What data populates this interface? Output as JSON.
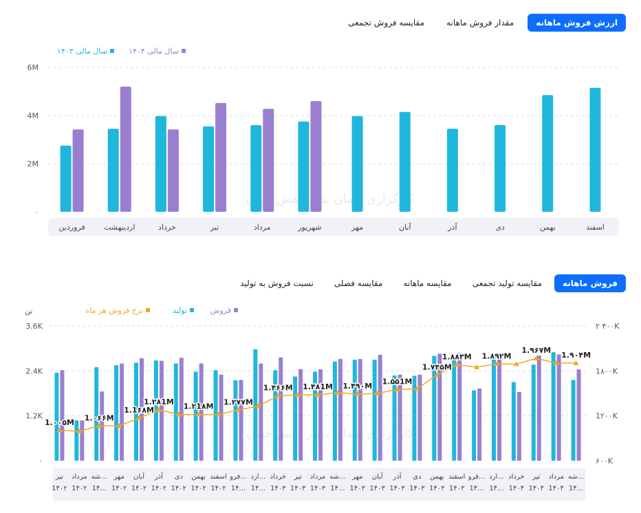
{
  "top_tabs": [
    {
      "label": "مقایسه فروش تجمعی",
      "active": false
    },
    {
      "label": "مقدار فروش ماهانه",
      "active": false
    },
    {
      "label": "ارزش فروش ماهانه",
      "active": true
    }
  ],
  "bottom_tabs": [
    {
      "label": "نسبت فروش به تولید",
      "active": false
    },
    {
      "label": "مقایسه فصلی",
      "active": false
    },
    {
      "label": "مقایسه ماهانه",
      "active": false
    },
    {
      "label": "مقایسه تولید تجمعی",
      "active": false
    },
    {
      "label": "فروش ماهانه",
      "active": true
    }
  ],
  "watermark_text": "کارگزاری آرمان تدبیر نقش جهان",
  "colors": {
    "teal": "#1fb7dc",
    "purple": "#9a7fd1",
    "orange": "#f5a623",
    "accent": "#0d6efd",
    "axis_band": "#f0f2f8"
  },
  "chart_data": [
    {
      "type": "bar",
      "ytick_labels": [
        "۰",
        "2M",
        "4M",
        "6M"
      ],
      "ylim": [
        0,
        6
      ],
      "categories": [
        "فروردین",
        "اردیبهشت",
        "خرداد",
        "تیر",
        "مرداد",
        "شهریور",
        "مهر",
        "آبان",
        "آذر",
        "دی",
        "بهمن",
        "اسفند"
      ],
      "legend": [
        "سال مالی ۱۴۰۴",
        "سال مالی ۱۴۰۳"
      ],
      "legend_position": "top-right",
      "series": [
        {
          "name": "سال مالی ۱۴۰۳",
          "color": "#1fb7dc",
          "values": [
            2.75,
            3.45,
            3.98,
            3.55,
            3.6,
            3.75,
            3.98,
            4.15,
            3.45,
            3.6,
            4.85,
            5.15
          ]
        },
        {
          "name": "سال مالی ۱۴۰۴",
          "color": "#9a7fd1",
          "values": [
            3.42,
            5.2,
            3.42,
            4.52,
            4.28,
            4.6,
            null,
            null,
            null,
            null,
            null,
            null
          ]
        }
      ]
    },
    {
      "type": "bar",
      "ylabel": "تن",
      "ytick_labels": [
        "۰",
        "1.2K",
        "2.4K",
        "3.6K"
      ],
      "ylim": [
        0,
        3.6
      ],
      "y2tick_labels": [
        "۶۰۰K",
        "1۲۰۰K",
        "1۸۰۰K",
        "۲ ۴۰۰K"
      ],
      "y2lim": [
        600,
        2400
      ],
      "legend": [
        "فروش",
        "تولید",
        "نرخ فروش هر ماه"
      ],
      "legend_position": "top",
      "categories": [
        {
          "m": "تیر",
          "y": "1۴۰۲"
        },
        {
          "m": "مرداد",
          "y": "1۴۰۲"
        },
        {
          "m": "شه...",
          "y": "1۴..."
        },
        {
          "m": "مهر",
          "y": "1۴۰۲"
        },
        {
          "m": "آبان",
          "y": "1۴۰۲"
        },
        {
          "m": "آذر",
          "y": "1۴۰۲"
        },
        {
          "m": "دی",
          "y": "1۴۰۲"
        },
        {
          "m": "بهمن",
          "y": "1۴۰۲"
        },
        {
          "m": "اسفند",
          "y": "1۴۰۲"
        },
        {
          "m": "فرو...",
          "y": "1۴..."
        },
        {
          "m": "ارد...",
          "y": "1۴..."
        },
        {
          "m": "خرداد",
          "y": "1۴۰۳"
        },
        {
          "m": "تیر",
          "y": "1۴۰۳"
        },
        {
          "m": "مرداد",
          "y": "1۴۰۳"
        },
        {
          "m": "شه...",
          "y": "1۴..."
        },
        {
          "m": "مهر",
          "y": "1۴۰۳"
        },
        {
          "m": "آبان",
          "y": "1۴۰۳"
        },
        {
          "m": "آذر",
          "y": "1۴۰۳"
        },
        {
          "m": "دی",
          "y": "1۴۰۳"
        },
        {
          "m": "بهمن",
          "y": "1۴۰۳"
        },
        {
          "m": "اسفند",
          "y": "1۴۰۳"
        },
        {
          "m": "فرو...",
          "y": "1۴..."
        },
        {
          "m": "ارد...",
          "y": "1۴..."
        },
        {
          "m": "خرداد",
          "y": "1۴۰۴"
        },
        {
          "m": "تیر",
          "y": "1۴۰۴"
        },
        {
          "m": "مرداد",
          "y": "1۴۰۴"
        },
        {
          "m": "شه...",
          "y": "1۴..."
        }
      ],
      "series": [
        {
          "name": "تولید",
          "color": "#1fb7dc",
          "values": [
            2.35,
            1.08,
            2.5,
            2.55,
            2.62,
            2.68,
            2.6,
            2.38,
            2.42,
            2.15,
            2.98,
            2.42,
            2.25,
            2.38,
            2.65,
            2.7,
            2.7,
            2.28,
            2.27,
            2.8,
            2.8,
            1.88,
            2.78,
            2.1,
            2.57,
            2.9,
            2.16
          ]
        },
        {
          "name": "فروش",
          "color": "#9a7fd1",
          "values": [
            2.42,
            1.08,
            1.85,
            2.6,
            2.74,
            2.67,
            2.75,
            2.6,
            2.3,
            2.16,
            2.6,
            2.76,
            2.45,
            2.44,
            2.72,
            2.72,
            2.83,
            2.3,
            2.3,
            2.86,
            2.88,
            1.93,
            2.8,
            1.84,
            2.81,
            2.84,
            2.44
          ]
        },
        {
          "name": "نرخ فروش هر ماه",
          "color": "#f5a623",
          "values": [
            1005,
            995,
            1066,
            1066,
            1168,
            1281,
            1218,
            1218,
            1218,
            1277,
            1330,
            1466,
            1481,
            1481,
            1510,
            1490,
            1500,
            1551,
            1560,
            1745,
            1883,
            1850,
            1892,
            1892,
            1967,
            1904,
            1904
          ]
        }
      ],
      "rate_labels": [
        {
          "i": 0,
          "t": "1.۰۰۵M"
        },
        {
          "i": 2,
          "t": "1.۰۶۶M"
        },
        {
          "i": 4,
          "t": "1.1۶۸M"
        },
        {
          "i": 5,
          "t": "1.۲۸1M"
        },
        {
          "i": 7,
          "t": "1.۲1۸M"
        },
        {
          "i": 9,
          "t": "1.۲۷۷M"
        },
        {
          "i": 11,
          "t": "1.۴۶۶M"
        },
        {
          "i": 13,
          "t": "1.۴۸1M"
        },
        {
          "i": 15,
          "t": "1.۴۹۰M"
        },
        {
          "i": 17,
          "t": "1.۵۵1M"
        },
        {
          "i": 19,
          "t": "1.۷۴۵M"
        },
        {
          "i": 20,
          "t": "1.۸۸۳M"
        },
        {
          "i": 22,
          "t": "1.۸۹۲M"
        },
        {
          "i": 24,
          "t": "1.۹۶۷M"
        },
        {
          "i": 26,
          "t": "1.۹۰۴M"
        }
      ]
    }
  ]
}
